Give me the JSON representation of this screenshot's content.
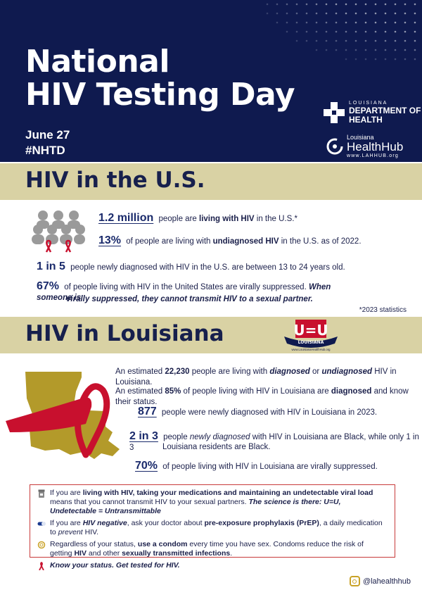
{
  "header": {
    "title_line1": "National",
    "title_line2": "HIV Testing Day",
    "date": "June 27",
    "hashtag": "#NHTD"
  },
  "logos": {
    "ldh_small": "LOUISIANA",
    "ldh_line1": "DEPARTMENT OF",
    "ldh_line2": "HEALTH",
    "hub_small": "Louisiana",
    "hub_large": "HealthHub",
    "hub_url": "www.LAHHUB.org"
  },
  "us_section": {
    "heading": "HIV in the U.S.",
    "stat1": {
      "big": "1.2 million",
      "pre": " people are ",
      "bold": "living with HIV",
      "post": " in the U.S.*"
    },
    "stat2": {
      "big": "13%",
      "pre": " of people are living with ",
      "bold": "undiagnosed HIV",
      "post": " in the U.S. as of 2022."
    },
    "stat3": {
      "big": "1 in 5",
      "text": " people newly diagnosed with HIV in the U.S. are between 13 to 24 years old."
    },
    "stat4": {
      "big": "67%",
      "text": " of people living with HIV in the United States are virally suppressed. ",
      "em1": "When someone is",
      "em2": "virally suppressed, they cannot transmit HIV to a sexual partner."
    },
    "footnote": "*2023 statistics"
  },
  "la_section": {
    "heading": "HIV in Louisiana",
    "uu_logo": {
      "mark": "U=U",
      "banner": "LOUISIANA",
      "url": "www.LouisianaHealthHub.org"
    },
    "s1": {
      "pre": "An estimated ",
      "num": "22,230",
      "mid": " people are living with ",
      "em1": "diagnosed",
      "or": " or ",
      "em2": "undiagnosed",
      "post": " HIV in Louisiana."
    },
    "s2": {
      "pre": "An estimated ",
      "num": "85%",
      "mid": " of people living with HIV in Louisiana are ",
      "bold": "diagnosed",
      "post": " and know their status."
    },
    "s3": {
      "big": "877",
      "text": " people were newly diagnosed with HIV in Louisiana in 2023."
    },
    "s4": {
      "big": "2 in 3",
      "pre": " people ",
      "em": "newly diagnosed",
      "post": " with HIV in Louisiana are Black, while only 1 in 3",
      "line2": "Louisiana residents are Black."
    },
    "s5": {
      "big": "70%",
      "text": " of people living with HIV in Louisiana are virally suppressed."
    }
  },
  "info": {
    "r1": {
      "pre": "If you are ",
      "bold": "living with HIV, taking your medications and maintaining an undetectable viral load",
      "mid": " means that you cannot transmit HIV to your sexual partners. ",
      "em": "The science is there: U=U, Undetectable = Untransmittable"
    },
    "r2": {
      "pre": "If you are ",
      "em": "HIV negative",
      "mid": ", ask your doctor about ",
      "bold": "pre-exposure prophylaxis (PrEP)",
      "mid2": ", a daily medication to ",
      "em2": "prevent",
      "post": " HIV."
    },
    "r3": {
      "pre": "Regardless of your status, ",
      "bold": "use a condom",
      "mid": " every time you have sex. Condoms reduce the risk of getting ",
      "bold2": "HIV",
      "mid2": " and other ",
      "bold3": "sexually transmitted infections",
      "post": "."
    },
    "r4": {
      "em": "Know your status. Get tested for HIV."
    }
  },
  "social": {
    "handle": "@lahealthhub"
  },
  "icons": {
    "people": "people-group-icon",
    "ribbon": "red-ribbon-icon",
    "map": "louisiana-map-icon",
    "pill": "pill-bottle-icon",
    "capsule": "capsule-icon",
    "condom": "condom-icon",
    "instagram": "instagram-icon"
  },
  "colors": {
    "navy": "#0f1a4f",
    "tan": "#d9d2a4",
    "gold": "#b39a2a",
    "red": "#c8102e"
  }
}
